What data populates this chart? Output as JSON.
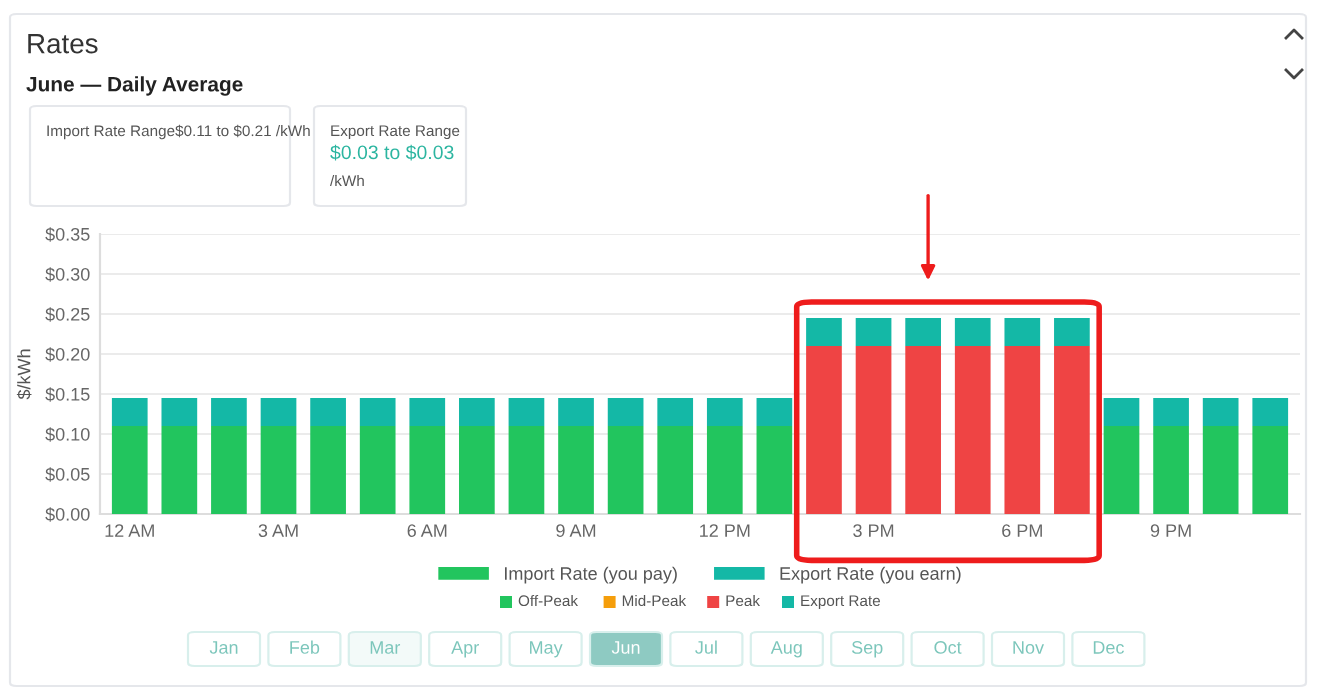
{
  "chart_data": [
    {
      "type": "bar",
      "title": "Rates",
      "subtitle": "June — Daily Average",
      "ylabel": "$/kWh",
      "stacked": true,
      "categories": [
        "12 AM",
        null,
        null,
        "3 AM",
        null,
        null,
        "6 AM",
        null,
        null,
        "9 AM",
        null,
        null,
        "12 PM",
        null,
        null,
        "3 PM",
        null,
        null,
        "6 PM",
        null,
        null,
        "9 PM",
        null,
        null
      ],
      "series": [
        {
          "name": "Import Rate (you pay)",
          "color": "#22c55e",
          "colors": [
            "#22c55e",
            "#22c55e",
            "#22c55e",
            "#22c55e",
            "#22c55e",
            "#22c55e",
            "#22c55e",
            "#22c55e",
            "#22c55e",
            "#22c55e",
            "#22c55e",
            "#22c55e",
            "#22c55e",
            "#22c55e",
            "#ef4444",
            "#ef4444",
            "#ef4444",
            "#ef4444",
            "#ef4444",
            "#ef4444",
            "#22c55e",
            "#22c55e",
            "#22c55e",
            "#22c55e"
          ],
          "values": [
            0.11,
            0.11,
            0.11,
            0.11,
            0.11,
            0.11,
            0.11,
            0.11,
            0.11,
            0.11,
            0.11,
            0.11,
            0.11,
            0.11,
            0.21,
            0.21,
            0.21,
            0.21,
            0.21,
            0.21,
            0.11,
            0.11,
            0.11,
            0.11
          ]
        },
        {
          "name": "Export Rate (you earn)",
          "color": "#14b8a6",
          "values": [
            0.035,
            0.035,
            0.035,
            0.035,
            0.035,
            0.035,
            0.035,
            0.035,
            0.035,
            0.035,
            0.035,
            0.035,
            0.035,
            0.035,
            0.035,
            0.035,
            0.035,
            0.035,
            0.035,
            0.035,
            0.035,
            0.035,
            0.035,
            0.035
          ]
        }
      ],
      "ylim": [
        0,
        0.35
      ],
      "yticks": [
        {
          "value": 0,
          "label": "$0.00"
        },
        {
          "value": 0.05,
          "label": "$0.05"
        },
        {
          "value": 0.1,
          "label": "$0.10"
        },
        {
          "value": 0.15,
          "label": "$0.15"
        },
        {
          "value": 0.2,
          "label": "$0.20"
        },
        {
          "value": 0.25,
          "label": "$0.25"
        },
        {
          "value": 0.3,
          "label": "$0.30"
        },
        {
          "value": 0.35,
          "label": "$0.35"
        }
      ],
      "grid": "y",
      "legend": "bottom",
      "annotations": [
        "Import Rate Range$0.11 to $0.21 /kWh",
        "Export Rate Range",
        "$0.03 to $0.03",
        "/kWh"
      ]
    },
    {
      "type": "other",
      "categories": [
        "Off-Peak",
        "Mid-Peak",
        "Peak",
        "Export Rate"
      ],
      "colors": [
        "#22c55e",
        "#f59e0b",
        "#ef4444",
        "#14b8a6"
      ]
    },
    {
      "type": "other",
      "categories": [
        "Jan",
        "Feb",
        "Mar",
        "Apr",
        "May",
        "Jun",
        "Jul",
        "Aug",
        "Sep",
        "Oct",
        "Nov",
        "Dec"
      ],
      "colors": [
        "#ffffff",
        "#ffffff",
        "#f3faf9",
        "#ffffff",
        "#ffffff",
        "#8ecac2",
        "#ffffff",
        "#ffffff",
        "#ffffff",
        "#ffffff",
        "#ffffff",
        "#ffffff"
      ]
    }
  ]
}
